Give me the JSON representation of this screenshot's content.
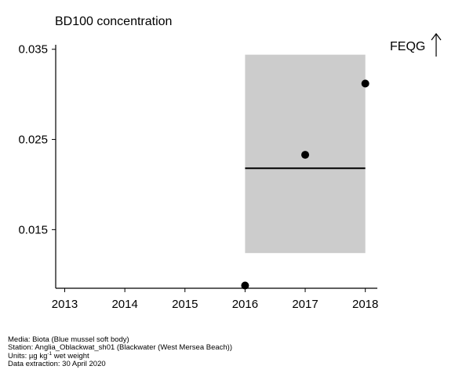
{
  "chart_data": {
    "type": "scatter",
    "title": "BD100 concentration",
    "xlim": [
      2012.85,
      2018.2
    ],
    "ylim": [
      0.0085,
      0.0355
    ],
    "x_ticks": [
      2013,
      2014,
      2015,
      2016,
      2017,
      2018
    ],
    "y_ticks": [
      0.015,
      0.025,
      0.035
    ],
    "y_tick_labels": [
      "0.015",
      "0.025",
      "0.035"
    ],
    "points": [
      {
        "x": 2016,
        "y": 0.0088
      },
      {
        "x": 2017,
        "y": 0.0233
      },
      {
        "x": 2018,
        "y": 0.0312
      }
    ],
    "band": {
      "x_start": 2016,
      "x_end": 2018,
      "y_low": 0.0124,
      "y_high": 0.0344
    },
    "trend_line": {
      "x_start": 2016,
      "x_end": 2018,
      "y": 0.0218
    },
    "band_color": "#cccccc",
    "annotation": "FEQG",
    "annotation_icon": "up-arrow-icon"
  },
  "footer": {
    "media": "Media: Biota (Blue mussel soft body)",
    "station": "Station: Anglia_Oblackwat_sh01 (Blackwater (West Mersea Beach))",
    "units_prefix": "Units:  µg kg",
    "units_sup": "-1",
    "units_suffix": " wet weight",
    "extraction": "Data extraction: 30 April 2020"
  }
}
